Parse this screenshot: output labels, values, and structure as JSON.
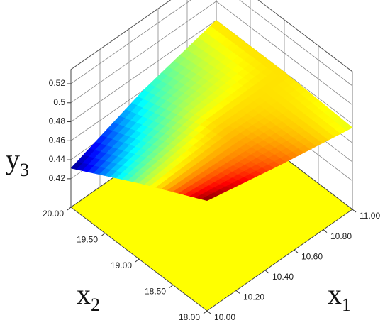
{
  "chart_data": {
    "type": "surface",
    "z_label": {
      "text": "y",
      "sub": "3"
    },
    "x1_label": {
      "text": "x",
      "sub": "1"
    },
    "x2_label": {
      "text": "x",
      "sub": "2"
    },
    "x1": [
      10,
      10.5,
      11
    ],
    "x2": [
      18,
      19,
      20
    ],
    "z": [
      [
        0.506,
        0.49,
        0.476
      ],
      [
        0.47,
        0.48,
        0.48
      ],
      [
        0.431,
        0.46,
        0.48
      ]
    ],
    "x1lim": [
      10,
      11
    ],
    "x2lim": [
      18,
      20
    ],
    "zlim": [
      0.39,
      0.535
    ],
    "x1ticks": [
      {
        "value": 10,
        "label": "10.00"
      },
      {
        "value": 10.2,
        "label": "10.20"
      },
      {
        "value": 10.4,
        "label": "10.40"
      },
      {
        "value": 10.6,
        "label": "10.60"
      },
      {
        "value": 10.8,
        "label": "10.80"
      },
      {
        "value": 11,
        "label": "11.00"
      }
    ],
    "x2ticks": [
      {
        "value": 18,
        "label": "18.00"
      },
      {
        "value": 18.5,
        "label": "18.50"
      },
      {
        "value": 19,
        "label": "19.00"
      },
      {
        "value": 19.5,
        "label": "19.50"
      },
      {
        "value": 20,
        "label": "20.00"
      }
    ],
    "zticks": [
      0.42,
      0.44,
      0.46,
      0.48,
      0.5,
      0.52
    ],
    "floor_color": "#ffff00",
    "grid": true
  }
}
